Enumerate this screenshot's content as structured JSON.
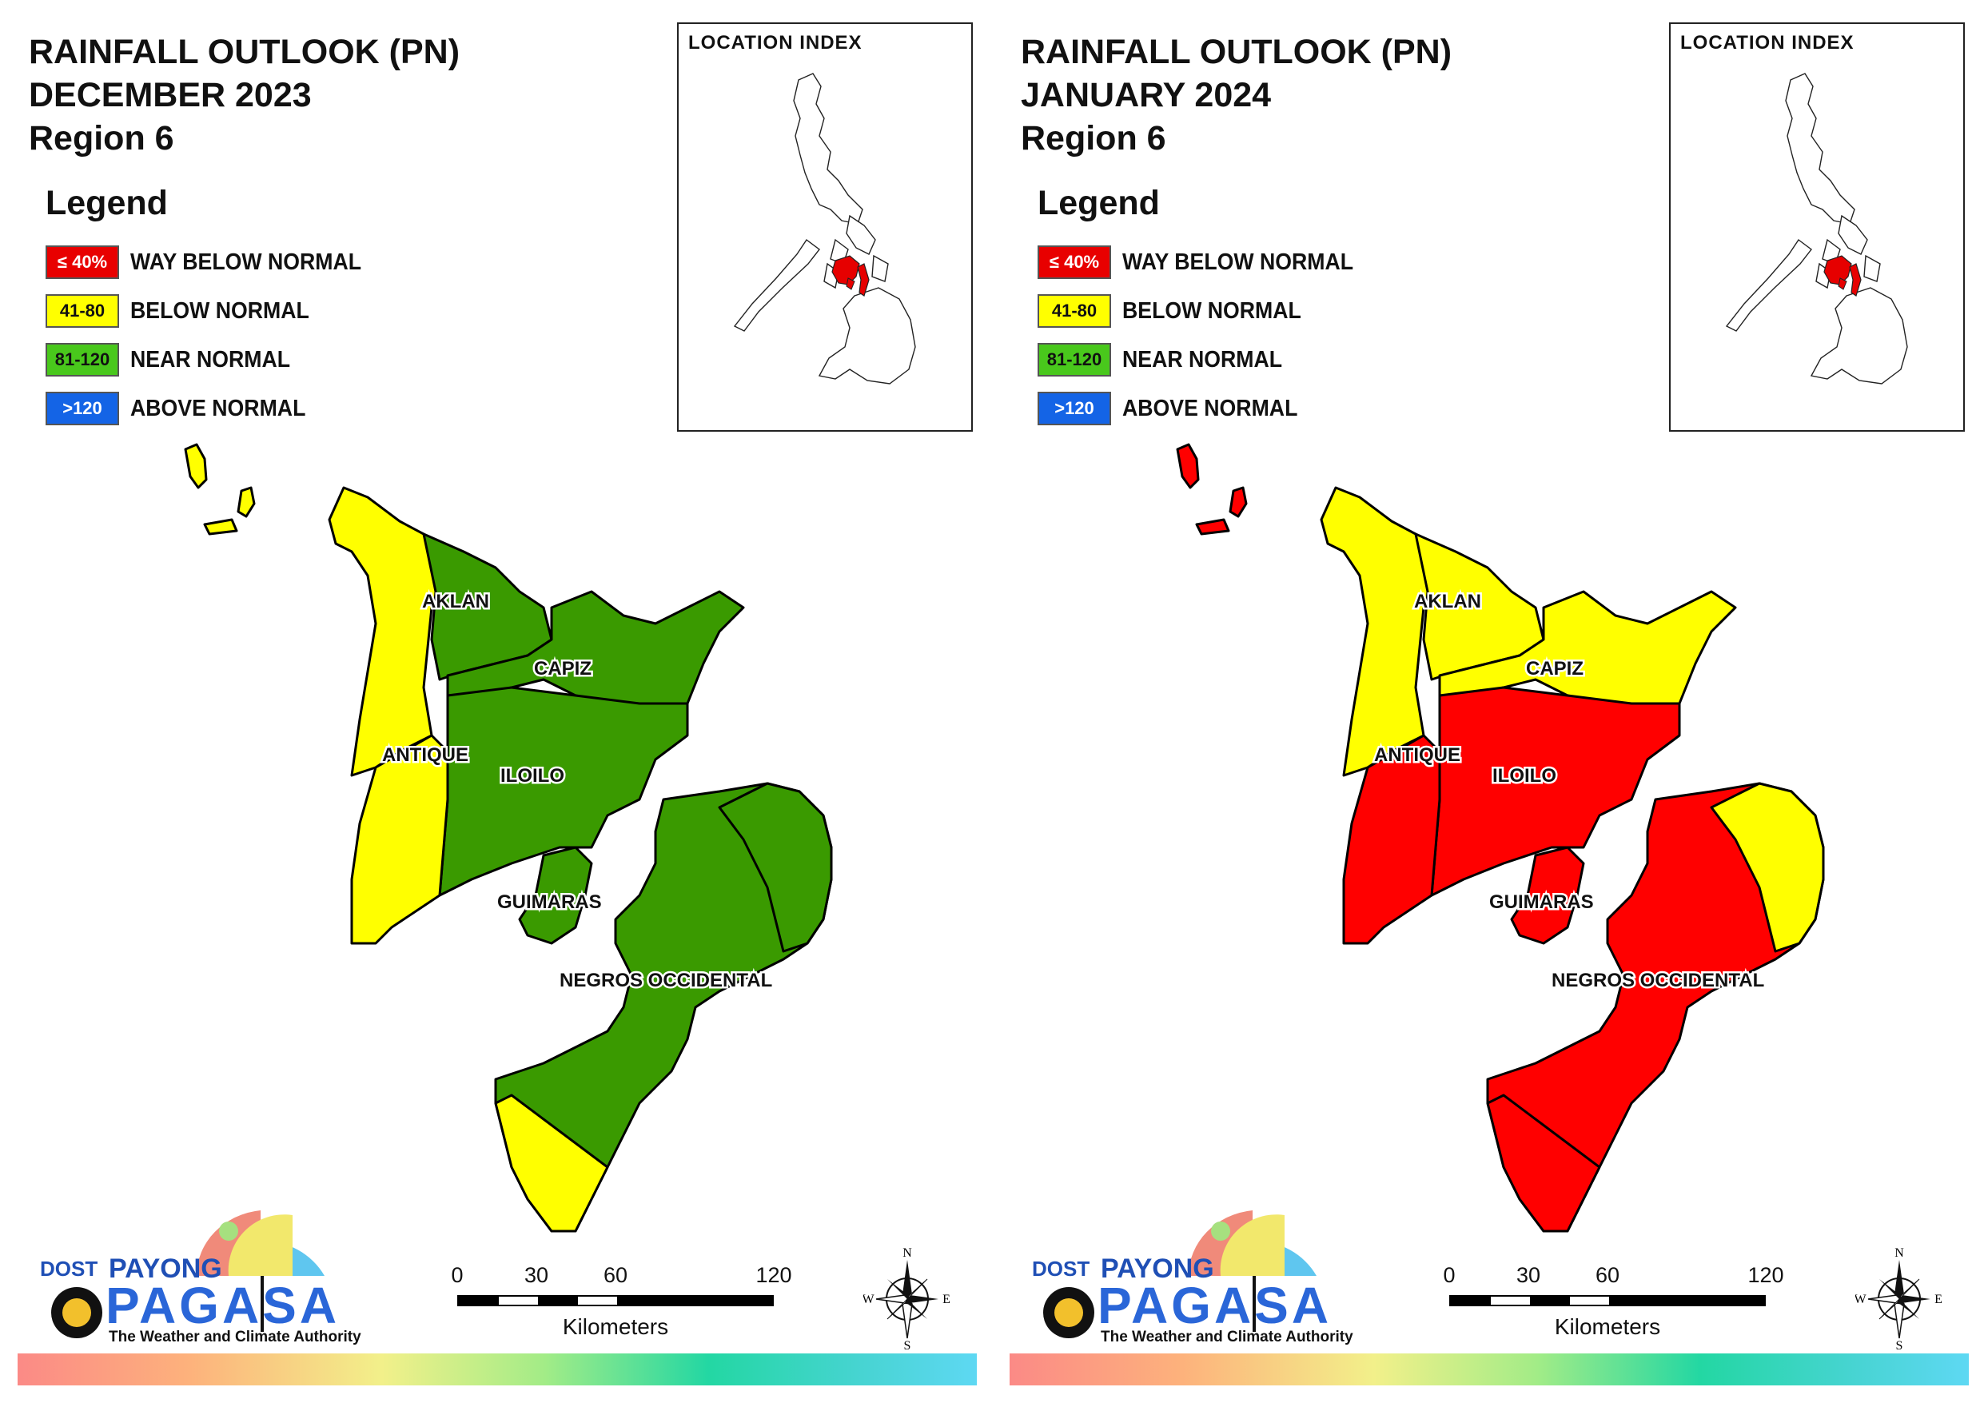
{
  "panels": [
    {
      "title_line1": "RAINFALL OUTLOOK (PN)",
      "title_line2": "DECEMBER 2023",
      "title_line3": "Region 6",
      "colors": {
        "aklan": "#ffff00",
        "capiz": "#3a9a00",
        "iloilo": "#3a9a00",
        "antique_north": "#ffff00",
        "antique_south": "#ffff00",
        "guimaras": "#3a9a00",
        "negros_main": "#3a9a00",
        "negros_ne": "#3a9a00",
        "negros_south": "#ffff00",
        "islands": "#ffff00",
        "aklan_east": "#3a9a00"
      }
    },
    {
      "title_line1": "RAINFALL OUTLOOK (PN)",
      "title_line2": "JANUARY 2024",
      "title_line3": "Region 6",
      "colors": {
        "aklan": "#ffff00",
        "capiz": "#ffff00",
        "iloilo": "#ff0000",
        "antique_north": "#ffff00",
        "antique_south": "#ff0000",
        "guimaras": "#ff0000",
        "negros_main": "#ff0000",
        "negros_ne": "#ffff00",
        "negros_south": "#ff0000",
        "islands": "#ff0000",
        "aklan_east": "#ffff00"
      }
    }
  ],
  "legend": {
    "heading": "Legend",
    "items": [
      {
        "range": "≤ 40%",
        "label": "WAY BELOW NORMAL",
        "color": "#e80000"
      },
      {
        "range": "41-80",
        "label": "BELOW NORMAL",
        "color": "#ffff00"
      },
      {
        "range": "81-120",
        "label": "NEAR NORMAL",
        "color": "#49c81c"
      },
      {
        "range": ">120",
        "label": "ABOVE NORMAL",
        "color": "#1464e6"
      }
    ]
  },
  "inset_title": "LOCATION INDEX",
  "provinces": {
    "aklan": "AKLAN",
    "capiz": "CAPIZ",
    "antique": "ANTIQUE",
    "iloilo": "ILOILO",
    "guimaras": "GUIMARAS",
    "negros": "NEGROS OCCIDENTAL"
  },
  "scale": {
    "ticks": [
      "0",
      "30",
      "60",
      "120"
    ],
    "unit": "Kilometers"
  },
  "compass": {
    "n": "N",
    "s": "S",
    "e": "E",
    "w": "W"
  },
  "logo": {
    "dost": "DOST",
    "payong": "PAYONG",
    "pagasa": "PAGASA",
    "tagline": "The Weather and Climate Authority"
  }
}
